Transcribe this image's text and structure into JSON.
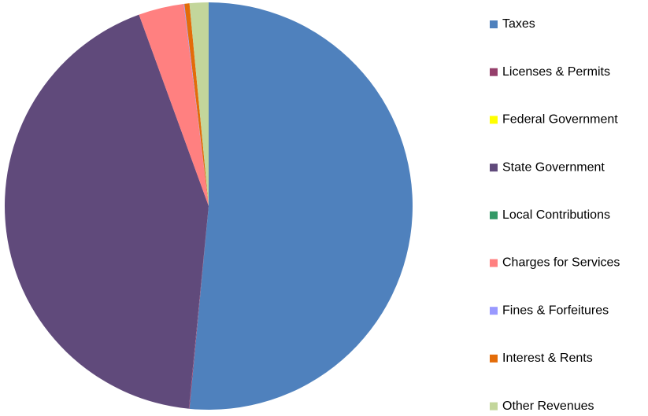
{
  "chart_data": {
    "type": "pie",
    "categories": [
      "Taxes",
      "Licenses & Permits",
      "Federal Government",
      "State Government",
      "Local Contributions",
      "Charges for Services",
      "Fines & Forfeitures",
      "Interest & Rents",
      "Other Revenues"
    ],
    "values": [
      51.5,
      0.05,
      0,
      42.9,
      0,
      3.6,
      0.05,
      0.4,
      1.5
    ],
    "colors": [
      "#4f81bd",
      "#953f6b",
      "#ffff00",
      "#604a7b",
      "#339966",
      "#ff8080",
      "#9999ff",
      "#e36c09",
      "#c3d69b"
    ],
    "legend": "right"
  }
}
